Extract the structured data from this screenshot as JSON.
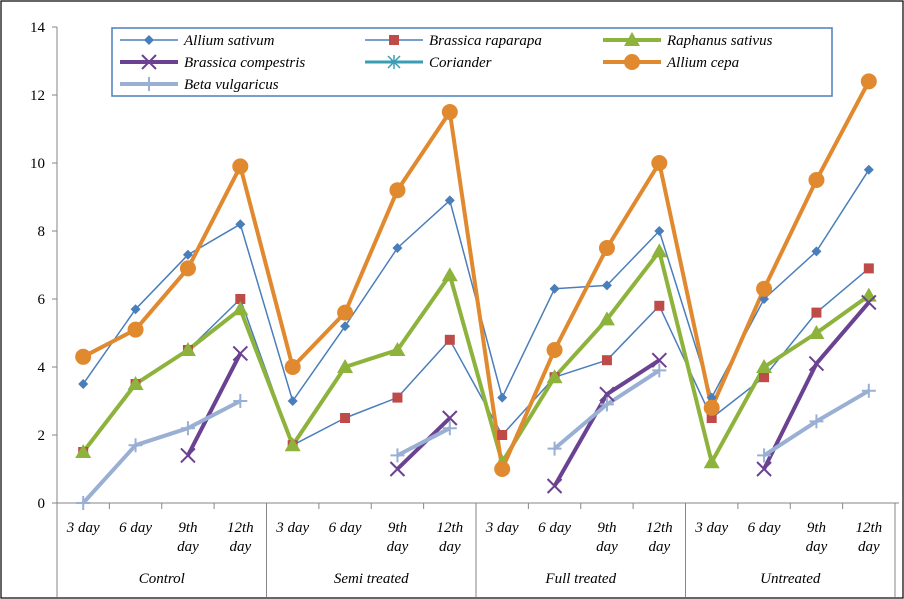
{
  "chart_data": {
    "type": "line",
    "groups": [
      "Control",
      "Semi treated",
      "Full treated",
      "Untreated"
    ],
    "categories": [
      "3 day",
      "6 day",
      "9th day",
      "12th day",
      "3 day",
      "6 day",
      "9th day",
      "12th day",
      "3 day",
      "6 day",
      "9th day",
      "12th day",
      "3 day",
      "6 day",
      "9th day",
      "12th day"
    ],
    "ylim": [
      0,
      14
    ],
    "yticks": [
      0,
      2,
      4,
      6,
      8,
      10,
      12,
      14
    ],
    "grid": false,
    "legend_position": "top",
    "series": [
      {
        "name": "Allium sativum",
        "color": "#4a7ebb",
        "marker": "diamond",
        "width": 1.5,
        "values": [
          3.5,
          5.7,
          7.3,
          8.2,
          3.0,
          5.2,
          7.5,
          8.9,
          3.1,
          6.3,
          6.4,
          8.0,
          3.1,
          6.0,
          7.4,
          9.8
        ]
      },
      {
        "name": "Brassica raparapa",
        "color": "#be4b48",
        "line_color": "#4a7ebb",
        "marker": "square",
        "width": 1.5,
        "values": [
          1.5,
          3.5,
          4.5,
          6.0,
          1.7,
          2.5,
          3.1,
          4.8,
          2.0,
          3.7,
          4.2,
          5.8,
          2.5,
          3.7,
          5.6,
          6.9
        ]
      },
      {
        "name": "Raphanus sativus",
        "color": "#8db33c",
        "marker": "triangle",
        "width": 4,
        "values": [
          1.5,
          3.5,
          4.5,
          5.7,
          1.7,
          4.0,
          4.5,
          6.7,
          1.2,
          3.7,
          5.4,
          7.4,
          1.2,
          4.0,
          5.0,
          6.1
        ]
      },
      {
        "name": "Brassica compestris",
        "color": "#6b4191",
        "marker": "x",
        "width": 4,
        "values": [
          null,
          null,
          1.4,
          4.4,
          null,
          null,
          1.0,
          2.5,
          null,
          0.5,
          3.2,
          4.2,
          null,
          1.0,
          4.1,
          5.9
        ]
      },
      {
        "name": "Coriander",
        "color": "#3a9db5",
        "marker": "star",
        "width": 3,
        "values": [
          null,
          null,
          null,
          null,
          null,
          null,
          null,
          null,
          null,
          null,
          null,
          null,
          null,
          null,
          null,
          null
        ]
      },
      {
        "name": "Allium cepa",
        "color": "#e0892f",
        "marker": "circle",
        "width": 4,
        "values": [
          4.3,
          5.1,
          6.9,
          9.9,
          4.0,
          5.6,
          9.2,
          11.5,
          1.0,
          4.5,
          7.5,
          10.0,
          2.8,
          6.3,
          9.5,
          12.4
        ]
      },
      {
        "name": "Beta vulgaricus",
        "color": "#9aafd4",
        "marker": "plus",
        "width": 4,
        "values": [
          0.0,
          1.7,
          2.2,
          3.0,
          null,
          null,
          1.4,
          2.2,
          null,
          1.6,
          2.9,
          3.9,
          null,
          1.4,
          2.4,
          3.3
        ]
      }
    ]
  }
}
